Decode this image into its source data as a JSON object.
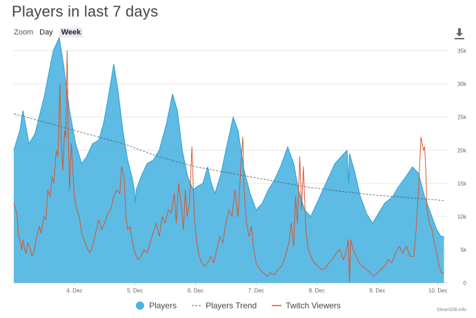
{
  "header": {
    "title": "Players in last 7 days"
  },
  "toolbar": {
    "zoom_label": "Zoom",
    "buttons": [
      "Day",
      "Week"
    ],
    "active": "Week"
  },
  "credit": "SteamDB.info",
  "colors": {
    "players_fill": "#4cb4e0",
    "players_line": "#2a9fd6",
    "trend": "#555555",
    "twitch": "#d9532c",
    "grid": "#e6e6e6"
  },
  "icons": {
    "download": "download-icon"
  },
  "chart_data": {
    "type": "area",
    "title": "Players in last 7 days",
    "x_unit": "day (0 = 3. Dec 00:00)",
    "x_range": [
      -0.2,
      6.95
    ],
    "x_ticks": [
      {
        "value": 0.8,
        "label": "4. Dec"
      },
      {
        "value": 1.8,
        "label": "5. Dec"
      },
      {
        "value": 2.8,
        "label": "6. Dec"
      },
      {
        "value": 3.8,
        "label": "7. Dec"
      },
      {
        "value": 4.8,
        "label": "8. Dec"
      },
      {
        "value": 5.8,
        "label": "9. Dec"
      },
      {
        "value": 6.8,
        "label": "10. Dec"
      }
    ],
    "y_range": [
      0,
      36000
    ],
    "y_ticks": [
      {
        "value": 0,
        "label": "0"
      },
      {
        "value": 5000,
        "label": "5k"
      },
      {
        "value": 10000,
        "label": "10k"
      },
      {
        "value": 15000,
        "label": "15k"
      },
      {
        "value": 20000,
        "label": "20k"
      },
      {
        "value": 25000,
        "label": "25k"
      },
      {
        "value": 30000,
        "label": "30k"
      },
      {
        "value": 35000,
        "label": "35k"
      }
    ],
    "grid": true,
    "legend_position": "bottom-center",
    "series": [
      {
        "name": "Players",
        "kind": "area",
        "points": [
          [
            -0.2,
            20000
          ],
          [
            -0.1,
            23000
          ],
          [
            -0.05,
            26000
          ],
          [
            0.0,
            23500
          ],
          [
            0.05,
            21000
          ],
          [
            0.15,
            22500
          ],
          [
            0.3,
            28000
          ],
          [
            0.45,
            35000
          ],
          [
            0.55,
            37000
          ],
          [
            0.62,
            33000
          ],
          [
            0.72,
            26000
          ],
          [
            0.82,
            21000
          ],
          [
            0.92,
            18000
          ],
          [
            1.0,
            19000
          ],
          [
            1.1,
            21000
          ],
          [
            1.2,
            21500
          ],
          [
            1.28,
            24000
          ],
          [
            1.36,
            28000
          ],
          [
            1.45,
            33000
          ],
          [
            1.52,
            29000
          ],
          [
            1.6,
            23000
          ],
          [
            1.68,
            18500
          ],
          [
            1.75,
            16000
          ],
          [
            1.79,
            14000
          ],
          [
            1.8,
            12000
          ],
          [
            1.82,
            14000
          ],
          [
            1.9,
            16000
          ],
          [
            2.0,
            18000
          ],
          [
            2.1,
            18500
          ],
          [
            2.2,
            20000
          ],
          [
            2.32,
            24000
          ],
          [
            2.42,
            28500
          ],
          [
            2.5,
            26000
          ],
          [
            2.58,
            20000
          ],
          [
            2.67,
            16000
          ],
          [
            2.76,
            14000
          ],
          [
            2.82,
            14500
          ],
          [
            2.92,
            15000
          ],
          [
            3.0,
            17500
          ],
          [
            3.06,
            15000
          ],
          [
            3.12,
            13500
          ],
          [
            3.22,
            16500
          ],
          [
            3.3,
            20000
          ],
          [
            3.42,
            25000
          ],
          [
            3.5,
            23000
          ],
          [
            3.6,
            17000
          ],
          [
            3.7,
            13500
          ],
          [
            3.8,
            11000
          ],
          [
            3.9,
            12000
          ],
          [
            4.0,
            14000
          ],
          [
            4.1,
            15500
          ],
          [
            4.2,
            17500
          ],
          [
            4.32,
            20500
          ],
          [
            4.42,
            18000
          ],
          [
            4.5,
            14000
          ],
          [
            4.6,
            11000
          ],
          [
            4.7,
            10000
          ],
          [
            4.8,
            12000
          ],
          [
            4.9,
            14000
          ],
          [
            5.0,
            16000
          ],
          [
            5.1,
            18000
          ],
          [
            5.2,
            19000
          ],
          [
            5.3,
            20000
          ],
          [
            5.33,
            15000
          ],
          [
            5.34,
            19500
          ],
          [
            5.42,
            17000
          ],
          [
            5.52,
            13000
          ],
          [
            5.62,
            10500
          ],
          [
            5.72,
            9000
          ],
          [
            5.82,
            10500
          ],
          [
            5.92,
            12000
          ],
          [
            6.05,
            13000
          ],
          [
            6.15,
            14500
          ],
          [
            6.27,
            16000
          ],
          [
            6.38,
            17500
          ],
          [
            6.48,
            16500
          ],
          [
            6.58,
            13000
          ],
          [
            6.68,
            10500
          ],
          [
            6.78,
            8000
          ],
          [
            6.85,
            7000
          ],
          [
            6.9,
            7000
          ]
        ]
      },
      {
        "name": "Players Trend",
        "kind": "dashed-line",
        "points": [
          [
            -0.2,
            25500
          ],
          [
            0.4,
            24000
          ],
          [
            1.0,
            22500
          ],
          [
            1.6,
            21000
          ],
          [
            2.2,
            19000
          ],
          [
            2.8,
            17500
          ],
          [
            3.4,
            16500
          ],
          [
            4.0,
            15500
          ],
          [
            4.6,
            14500
          ],
          [
            5.2,
            13800
          ],
          [
            5.8,
            13200
          ],
          [
            6.4,
            12800
          ],
          [
            6.9,
            12400
          ]
        ]
      },
      {
        "name": "Twitch Viewers",
        "kind": "line",
        "points": [
          [
            -0.2,
            12000
          ],
          [
            -0.15,
            10500
          ],
          [
            -0.12,
            7000
          ],
          [
            -0.1,
            6500
          ],
          [
            -0.07,
            5000
          ],
          [
            -0.05,
            6500
          ],
          [
            -0.02,
            5000
          ],
          [
            0.0,
            4500
          ],
          [
            0.03,
            6000
          ],
          [
            0.06,
            5500
          ],
          [
            0.1,
            4000
          ],
          [
            0.14,
            5000
          ],
          [
            0.18,
            7000
          ],
          [
            0.22,
            8500
          ],
          [
            0.25,
            7500
          ],
          [
            0.3,
            10000
          ],
          [
            0.33,
            9500
          ],
          [
            0.36,
            14000
          ],
          [
            0.4,
            13000
          ],
          [
            0.43,
            16000
          ],
          [
            0.46,
            15000
          ],
          [
            0.5,
            20000
          ],
          [
            0.53,
            19000
          ],
          [
            0.56,
            30000
          ],
          [
            0.58,
            22000
          ],
          [
            0.61,
            17000
          ],
          [
            0.64,
            23000
          ],
          [
            0.66,
            22000
          ],
          [
            0.68,
            35000
          ],
          [
            0.7,
            23000
          ],
          [
            0.72,
            14000
          ],
          [
            0.75,
            21000
          ],
          [
            0.78,
            16000
          ],
          [
            0.8,
            13000
          ],
          [
            0.84,
            11000
          ],
          [
            0.88,
            10000
          ],
          [
            0.92,
            7500
          ],
          [
            0.96,
            6500
          ],
          [
            1.0,
            5500
          ],
          [
            1.05,
            4500
          ],
          [
            1.1,
            5500
          ],
          [
            1.15,
            7500
          ],
          [
            1.2,
            9500
          ],
          [
            1.25,
            8000
          ],
          [
            1.3,
            9000
          ],
          [
            1.35,
            10500
          ],
          [
            1.4,
            11000
          ],
          [
            1.45,
            13000
          ],
          [
            1.5,
            14000
          ],
          [
            1.55,
            13500
          ],
          [
            1.58,
            17500
          ],
          [
            1.62,
            16000
          ],
          [
            1.65,
            10000
          ],
          [
            1.68,
            8000
          ],
          [
            1.72,
            8500
          ],
          [
            1.76,
            6000
          ],
          [
            1.8,
            4500
          ],
          [
            1.85,
            3500
          ],
          [
            1.9,
            4000
          ],
          [
            1.95,
            5000
          ],
          [
            2.0,
            4500
          ],
          [
            2.05,
            6000
          ],
          [
            2.1,
            7500
          ],
          [
            2.15,
            9000
          ],
          [
            2.2,
            7000
          ],
          [
            2.25,
            10000
          ],
          [
            2.3,
            9000
          ],
          [
            2.35,
            11000
          ],
          [
            2.4,
            10500
          ],
          [
            2.45,
            13500
          ],
          [
            2.48,
            9000
          ],
          [
            2.52,
            15000
          ],
          [
            2.56,
            12000
          ],
          [
            2.6,
            8000
          ],
          [
            2.63,
            14000
          ],
          [
            2.66,
            10000
          ],
          [
            2.7,
            12000
          ],
          [
            2.74,
            20500
          ],
          [
            2.78,
            10000
          ],
          [
            2.82,
            6000
          ],
          [
            2.86,
            4000
          ],
          [
            2.9,
            3000
          ],
          [
            2.95,
            2500
          ],
          [
            3.0,
            3000
          ],
          [
            3.05,
            4000
          ],
          [
            3.1,
            3000
          ],
          [
            3.15,
            5000
          ],
          [
            3.2,
            7000
          ],
          [
            3.25,
            6000
          ],
          [
            3.3,
            9000
          ],
          [
            3.35,
            11000
          ],
          [
            3.4,
            10000
          ],
          [
            3.45,
            14000
          ],
          [
            3.5,
            10000
          ],
          [
            3.55,
            18000
          ],
          [
            3.58,
            22000
          ],
          [
            3.6,
            14000
          ],
          [
            3.64,
            9000
          ],
          [
            3.68,
            7000
          ],
          [
            3.72,
            8500
          ],
          [
            3.76,
            5000
          ],
          [
            3.8,
            3000
          ],
          [
            3.86,
            2000
          ],
          [
            3.92,
            1500
          ],
          [
            3.98,
            1000
          ],
          [
            4.04,
            1500
          ],
          [
            4.1,
            1200
          ],
          [
            4.16,
            2000
          ],
          [
            4.22,
            2500
          ],
          [
            4.28,
            4000
          ],
          [
            4.34,
            6000
          ],
          [
            4.38,
            9000
          ],
          [
            4.42,
            5500
          ],
          [
            4.45,
            13000
          ],
          [
            4.48,
            9000
          ],
          [
            4.52,
            19000
          ],
          [
            4.55,
            11000
          ],
          [
            4.58,
            17500
          ],
          [
            4.62,
            8000
          ],
          [
            4.66,
            5000
          ],
          [
            4.7,
            4000
          ],
          [
            4.76,
            3000
          ],
          [
            4.82,
            2500
          ],
          [
            4.88,
            2000
          ],
          [
            4.94,
            2200
          ],
          [
            5.0,
            3000
          ],
          [
            5.06,
            3500
          ],
          [
            5.12,
            4500
          ],
          [
            5.18,
            5000
          ],
          [
            5.24,
            3500
          ],
          [
            5.28,
            4500
          ],
          [
            5.32,
            6500
          ],
          [
            5.34,
            0
          ],
          [
            5.36,
            6500
          ],
          [
            5.4,
            5000
          ],
          [
            5.45,
            4000
          ],
          [
            5.5,
            3000
          ],
          [
            5.56,
            2500
          ],
          [
            5.62,
            2000
          ],
          [
            5.68,
            1500
          ],
          [
            5.74,
            1000
          ],
          [
            5.8,
            1500
          ],
          [
            5.86,
            2000
          ],
          [
            5.92,
            2500
          ],
          [
            5.98,
            3500
          ],
          [
            6.04,
            3000
          ],
          [
            6.1,
            4500
          ],
          [
            6.16,
            5500
          ],
          [
            6.22,
            4500
          ],
          [
            6.28,
            5500
          ],
          [
            6.34,
            4000
          ],
          [
            6.4,
            4000
          ],
          [
            6.44,
            8000
          ],
          [
            6.48,
            14000
          ],
          [
            6.52,
            22000
          ],
          [
            6.54,
            21000
          ],
          [
            6.56,
            20000
          ],
          [
            6.58,
            20500
          ],
          [
            6.6,
            17000
          ],
          [
            6.62,
            11000
          ],
          [
            6.66,
            9000
          ],
          [
            6.7,
            8000
          ],
          [
            6.74,
            6000
          ],
          [
            6.78,
            4500
          ],
          [
            6.82,
            2500
          ],
          [
            6.86,
            1500
          ],
          [
            6.9,
            1500
          ]
        ]
      }
    ],
    "legend": [
      {
        "label": "Players",
        "marker": "circle"
      },
      {
        "label": "Players Trend",
        "marker": "dashed-line"
      },
      {
        "label": "Twitch Viewers",
        "marker": "line"
      }
    ]
  }
}
